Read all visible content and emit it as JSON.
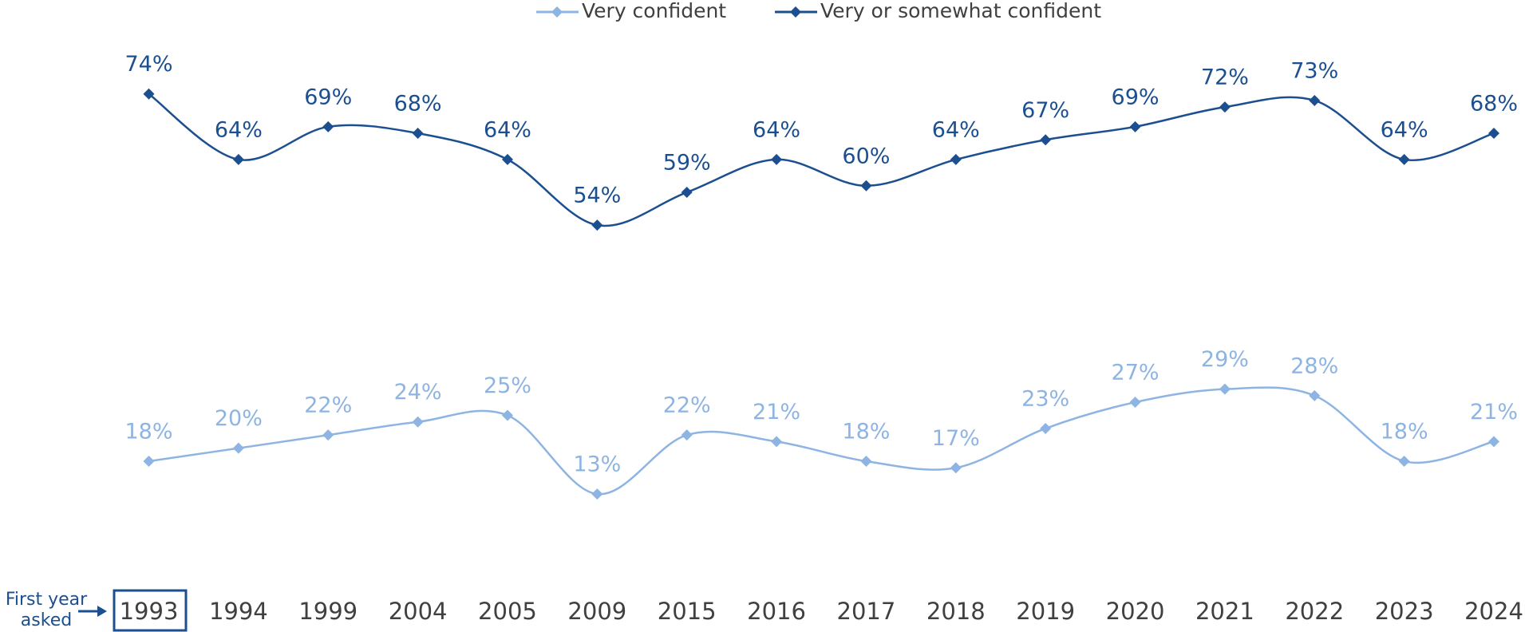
{
  "chart_data": {
    "type": "line",
    "categories": [
      "1993",
      "1994",
      "1999",
      "2004",
      "2005",
      "2009",
      "2015",
      "2016",
      "2017",
      "2018",
      "2019",
      "2020",
      "2021",
      "2022",
      "2023",
      "2024"
    ],
    "series": [
      {
        "name": "Very confident",
        "color": "#8db4e2",
        "values": [
          18,
          20,
          22,
          24,
          25,
          13,
          22,
          21,
          18,
          17,
          23,
          27,
          29,
          28,
          18,
          21
        ],
        "value_labels": [
          "18%",
          "20%",
          "22%",
          "24%",
          "25%",
          "13%",
          "22%",
          "21%",
          "18%",
          "17%",
          "23%",
          "27%",
          "29%",
          "28%",
          "18%",
          "21%"
        ]
      },
      {
        "name": "Very or somewhat confident",
        "color": "#1b4f8f",
        "values": [
          74,
          64,
          69,
          68,
          64,
          54,
          59,
          64,
          60,
          64,
          67,
          69,
          72,
          73,
          64,
          68
        ],
        "value_labels": [
          "74%",
          "64%",
          "69%",
          "68%",
          "64%",
          "54%",
          "59%",
          "64%",
          "60%",
          "64%",
          "67%",
          "69%",
          "72%",
          "73%",
          "64%",
          "68%"
        ]
      }
    ],
    "ylim": [
      0,
      100
    ],
    "annotation": [
      "First year",
      "asked"
    ]
  }
}
